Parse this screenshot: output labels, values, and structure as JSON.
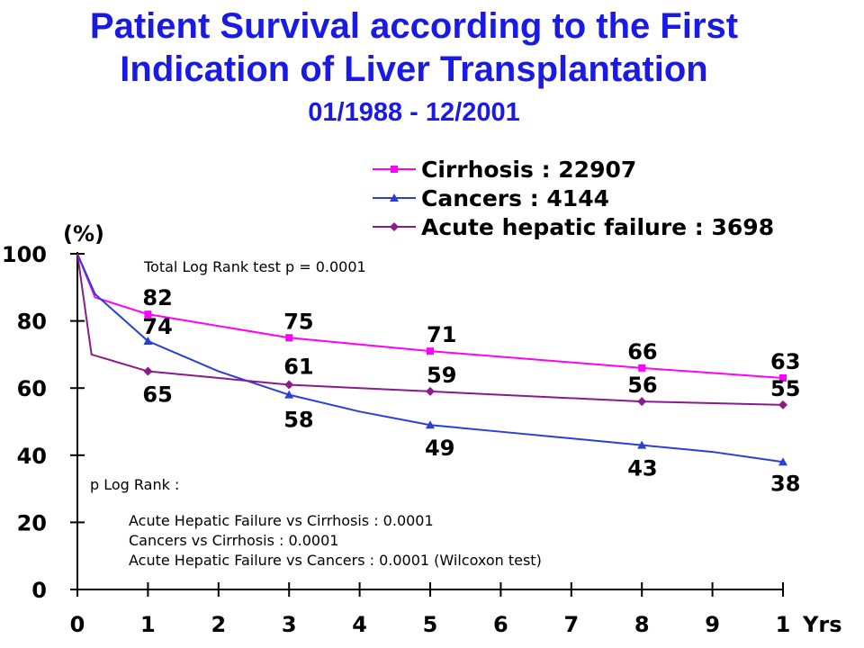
{
  "title": {
    "line1": "Patient Survival according to the First",
    "line2": "Indication of Liver Transplantation",
    "subtitle": "01/1988 - 12/2001"
  },
  "chart_data": {
    "type": "line",
    "ylabel": "(%)",
    "xunit": "Yrs",
    "ylim": [
      0,
      100
    ],
    "xlim": [
      0,
      10
    ],
    "yticks": [
      0,
      20,
      40,
      60,
      80,
      100
    ],
    "xticks": [
      0,
      1,
      2,
      3,
      4,
      5,
      6,
      7,
      8,
      9,
      10
    ],
    "xtick_labels": [
      "0",
      "1",
      "2",
      "3",
      "4",
      "5",
      "6",
      "7",
      "8",
      "9",
      "1"
    ],
    "grid": false,
    "legend_position": "top-right",
    "series": [
      {
        "name": "Cirrhosis : 22907",
        "color": "#ff00ff",
        "marker": "square",
        "x": [
          0,
          0.25,
          1,
          3,
          5,
          8,
          10
        ],
        "y": [
          100,
          87,
          82,
          75,
          71,
          66,
          63
        ],
        "labeled_points": [
          {
            "x": 1,
            "y": 82,
            "label": "82"
          },
          {
            "x": 3,
            "y": 75,
            "label": "75"
          },
          {
            "x": 5,
            "y": 71,
            "label": "71"
          },
          {
            "x": 8,
            "y": 66,
            "label": "66"
          },
          {
            "x": 10,
            "y": 63,
            "label": "63"
          }
        ]
      },
      {
        "name": "Cancers : 4144",
        "color": "#2a3fd6",
        "marker": "triangle",
        "x": [
          0,
          0.25,
          1,
          2,
          3,
          4,
          5,
          6,
          7,
          8,
          9,
          10
        ],
        "y": [
          100,
          88,
          74,
          65,
          58,
          53,
          49,
          47,
          45,
          43,
          41,
          38
        ],
        "labeled_points": [
          {
            "x": 1,
            "y": 74,
            "label": "74"
          },
          {
            "x": 3,
            "y": 58,
            "label": "58"
          },
          {
            "x": 5,
            "y": 49,
            "label": "49"
          },
          {
            "x": 8,
            "y": 43,
            "label": "43"
          },
          {
            "x": 10,
            "y": 38,
            "label": "38"
          }
        ]
      },
      {
        "name": "Acute hepatic failure : 3698",
        "color": "#8b1a8b",
        "marker": "diamond",
        "x": [
          0,
          0.2,
          1,
          3,
          5,
          8,
          10
        ],
        "y": [
          100,
          70,
          65,
          61,
          59,
          56,
          55
        ],
        "labeled_points": [
          {
            "x": 1,
            "y": 65,
            "label": "65"
          },
          {
            "x": 3,
            "y": 61,
            "label": "61"
          },
          {
            "x": 5,
            "y": 59,
            "label": "59"
          },
          {
            "x": 8,
            "y": 56,
            "label": "56"
          },
          {
            "x": 10,
            "y": 55,
            "label": "55"
          }
        ]
      }
    ],
    "annotations": {
      "total_log_rank": "Total Log Rank test p = 0.0001",
      "p_log_rank_header": "p Log Rank :",
      "comparisons": [
        "Acute Hepatic Failure vs Cirrhosis : 0.0001",
        "Cancers vs Cirrhosis : 0.0001",
        "Acute Hepatic Failure vs Cancers : 0.0001 (Wilcoxon test)"
      ]
    }
  }
}
